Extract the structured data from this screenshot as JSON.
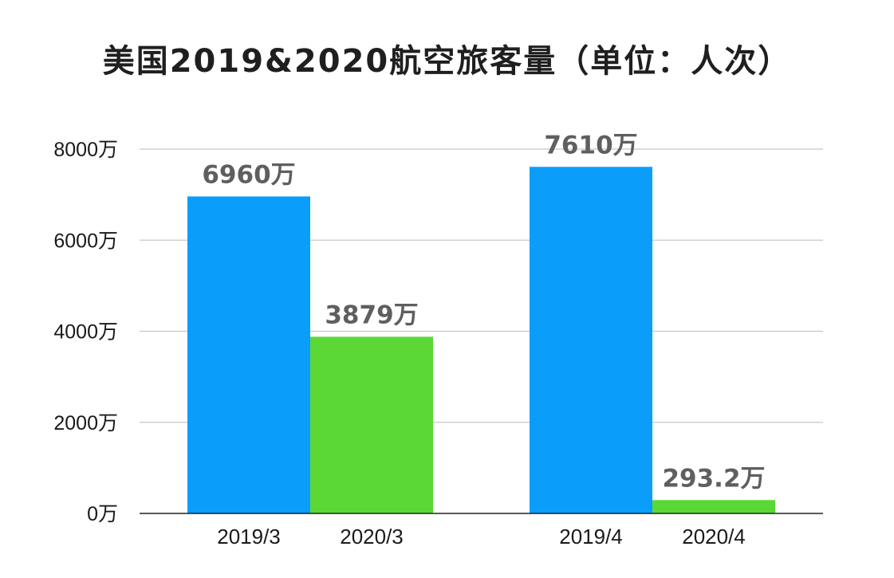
{
  "chart_data": {
    "type": "bar",
    "title": "美国2019&2020航空旅客量（单位：人次）",
    "xlabel": "",
    "ylabel": "",
    "ylim": [
      0,
      8000
    ],
    "y_unit": "万",
    "y_ticks": [
      {
        "value": 0,
        "label": "0万"
      },
      {
        "value": 2000,
        "label": "2000万"
      },
      {
        "value": 4000,
        "label": "4000万"
      },
      {
        "value": 6000,
        "label": "6000万"
      },
      {
        "value": 8000,
        "label": "8000万"
      }
    ],
    "grid": true,
    "legend": "none",
    "groups": [
      {
        "bars": [
          {
            "category": "2019/3",
            "value": 6960,
            "label": "6960万",
            "color": "#0A9EFA"
          },
          {
            "category": "2020/3",
            "value": 3879,
            "label": "3879万",
            "color": "#5BD836"
          }
        ]
      },
      {
        "bars": [
          {
            "category": "2019/4",
            "value": 7610,
            "label": "7610万",
            "color": "#0A9EFA"
          },
          {
            "category": "2020/4",
            "value": 293.2,
            "label": "293.2万",
            "color": "#5BD836"
          }
        ]
      }
    ]
  }
}
